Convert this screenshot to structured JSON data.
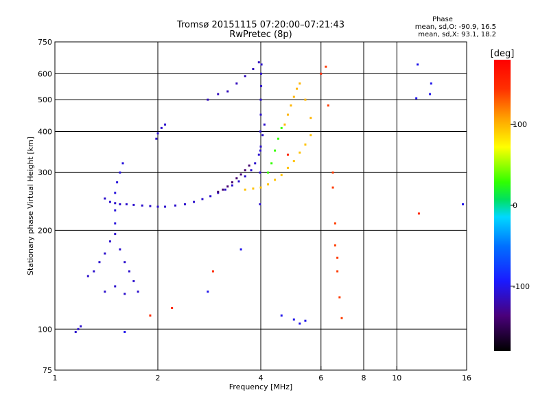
{
  "chart_data": {
    "type": "scatter",
    "title": "Tromsø 20151115 07:20:00–07:21:43",
    "subtitle": "RwPretec (8p)",
    "xlabel": "Frequency [MHz]",
    "ylabel": "Stationary phase Virtual Height [km]",
    "x_scale": "log",
    "y_scale": "log",
    "xlim": [
      1,
      16
    ],
    "ylim": [
      75,
      750
    ],
    "x_ticks": [
      1,
      2,
      4,
      6,
      8,
      10,
      16
    ],
    "y_ticks": [
      75,
      100,
      200,
      300,
      400,
      500,
      600,
      750
    ],
    "grid": true,
    "stats": {
      "heading": "Phase",
      "line_o": "mean, sd,O: -90.9, 16.5",
      "line_x": "mean, sd,X:  93.1, 18.2"
    },
    "colorbar": {
      "label": "[deg]",
      "range": [
        -180,
        180
      ],
      "ticks": [
        100,
        0,
        -100
      ],
      "colormap": "rainbow (black-purple-blue-cyan-green-yellow-red)"
    },
    "series": [
      {
        "trace": "o-mode-lower-cusp",
        "color_value": -110,
        "points": [
          [
            1.4,
            250
          ],
          [
            1.45,
            244
          ],
          [
            1.5,
            242
          ],
          [
            1.55,
            240
          ],
          [
            1.62,
            240
          ],
          [
            1.7,
            239
          ],
          [
            1.8,
            238
          ],
          [
            1.9,
            237
          ],
          [
            2.0,
            236
          ],
          [
            2.1,
            236
          ],
          [
            2.25,
            238
          ],
          [
            2.4,
            240
          ],
          [
            2.55,
            244
          ],
          [
            2.7,
            249
          ],
          [
            2.85,
            254
          ],
          [
            3.0,
            260
          ],
          [
            3.15,
            266
          ],
          [
            3.3,
            274
          ],
          [
            3.45,
            282
          ],
          [
            3.6,
            292
          ],
          [
            3.75,
            305
          ],
          [
            3.85,
            320
          ],
          [
            3.95,
            340
          ],
          [
            4.0,
            360
          ],
          [
            4.05,
            390
          ],
          [
            4.1,
            420
          ]
        ]
      },
      {
        "trace": "o-mode-cusp-transition",
        "color_value": -140,
        "points": [
          [
            3.0,
            262
          ],
          [
            3.1,
            266
          ],
          [
            3.2,
            272
          ],
          [
            3.3,
            280
          ],
          [
            3.4,
            288
          ],
          [
            3.5,
            296
          ],
          [
            3.6,
            305
          ],
          [
            3.7,
            315
          ]
        ]
      },
      {
        "trace": "o-mode-vertical-near-4MHz",
        "color_value": -110,
        "points": [
          [
            3.98,
            240
          ],
          [
            3.98,
            300
          ],
          [
            3.99,
            350
          ],
          [
            3.99,
            400
          ],
          [
            4.0,
            450
          ],
          [
            4.0,
            500
          ],
          [
            4.01,
            550
          ],
          [
            4.01,
            600
          ],
          [
            4.02,
            640
          ]
        ]
      },
      {
        "trace": "o-mode-upper-branch",
        "color_value": -115,
        "points": [
          [
            2.8,
            500
          ],
          [
            3.0,
            520
          ],
          [
            3.2,
            530
          ],
          [
            3.4,
            560
          ],
          [
            3.6,
            590
          ],
          [
            3.8,
            620
          ],
          [
            3.95,
            650
          ]
        ]
      },
      {
        "trace": "x-mode-lower-branch",
        "color_value": 95,
        "points": [
          [
            3.6,
            266
          ],
          [
            3.8,
            268
          ],
          [
            4.0,
            270
          ],
          [
            4.2,
            276
          ],
          [
            4.4,
            285
          ],
          [
            4.6,
            295
          ],
          [
            4.8,
            310
          ],
          [
            5.0,
            325
          ],
          [
            5.2,
            345
          ],
          [
            5.4,
            365
          ],
          [
            5.6,
            390
          ]
        ]
      },
      {
        "trace": "x-mode-upper-branch",
        "color_value": 100,
        "points": [
          [
            4.7,
            420
          ],
          [
            4.8,
            450
          ],
          [
            4.9,
            480
          ],
          [
            5.0,
            510
          ],
          [
            5.1,
            540
          ],
          [
            5.2,
            560
          ],
          [
            5.4,
            500
          ],
          [
            5.6,
            440
          ]
        ]
      },
      {
        "trace": "x-mode-transition-green",
        "color_value": 30,
        "points": [
          [
            4.2,
            300
          ],
          [
            4.3,
            320
          ],
          [
            4.4,
            350
          ],
          [
            4.5,
            380
          ],
          [
            4.6,
            410
          ]
        ]
      },
      {
        "trace": "low-patch-1.3-1.8MHz",
        "color_value": -110,
        "points": [
          [
            1.25,
            145
          ],
          [
            1.3,
            150
          ],
          [
            1.35,
            160
          ],
          [
            1.4,
            170
          ],
          [
            1.45,
            185
          ],
          [
            1.5,
            195
          ],
          [
            1.55,
            175
          ],
          [
            1.6,
            160
          ],
          [
            1.65,
            150
          ],
          [
            1.7,
            140
          ],
          [
            1.75,
            130
          ],
          [
            1.4,
            130
          ],
          [
            1.5,
            135
          ],
          [
            1.6,
            128
          ]
        ]
      },
      {
        "trace": "low-patch-column-1.5MHz",
        "color_value": -105,
        "points": [
          [
            1.5,
            210
          ],
          [
            1.5,
            230
          ],
          [
            1.5,
            260
          ],
          [
            1.52,
            280
          ],
          [
            1.55,
            300
          ],
          [
            1.58,
            320
          ]
        ]
      },
      {
        "trace": "cluster-2.0MHz",
        "color_value": -110,
        "points": [
          [
            1.98,
            380
          ],
          [
            2.0,
            395
          ],
          [
            2.05,
            410
          ],
          [
            2.1,
            420
          ]
        ]
      },
      {
        "trace": "near-100km",
        "color_value": -110,
        "points": [
          [
            1.15,
            98
          ],
          [
            1.17,
            100
          ],
          [
            1.19,
            102
          ]
        ]
      },
      {
        "trace": "scattered-6.5MHz",
        "color_value": 140,
        "points": [
          [
            6.5,
            300
          ],
          [
            6.5,
            270
          ],
          [
            6.6,
            210
          ],
          [
            6.6,
            180
          ],
          [
            6.7,
            165
          ],
          [
            6.7,
            150
          ],
          [
            6.8,
            125
          ],
          [
            6.9,
            108
          ],
          [
            6.2,
            630
          ],
          [
            6.3,
            480
          ]
        ]
      },
      {
        "trace": "scattered-misc",
        "color_value": -100,
        "points": [
          [
            11.5,
            640
          ],
          [
            11.4,
            505
          ],
          [
            12.6,
            560
          ],
          [
            12.5,
            520
          ],
          [
            15.6,
            240
          ],
          [
            5.0,
            107
          ],
          [
            5.2,
            104
          ],
          [
            5.4,
            106
          ],
          [
            4.6,
            110
          ],
          [
            3.5,
            175
          ],
          [
            2.8,
            130
          ],
          [
            1.6,
            98
          ]
        ]
      },
      {
        "trace": "scattered-warm",
        "color_value": 150,
        "points": [
          [
            11.6,
            225
          ],
          [
            2.9,
            150
          ],
          [
            1.9,
            110
          ],
          [
            2.2,
            116
          ],
          [
            4.8,
            340
          ],
          [
            6.0,
            600
          ]
        ]
      }
    ]
  }
}
